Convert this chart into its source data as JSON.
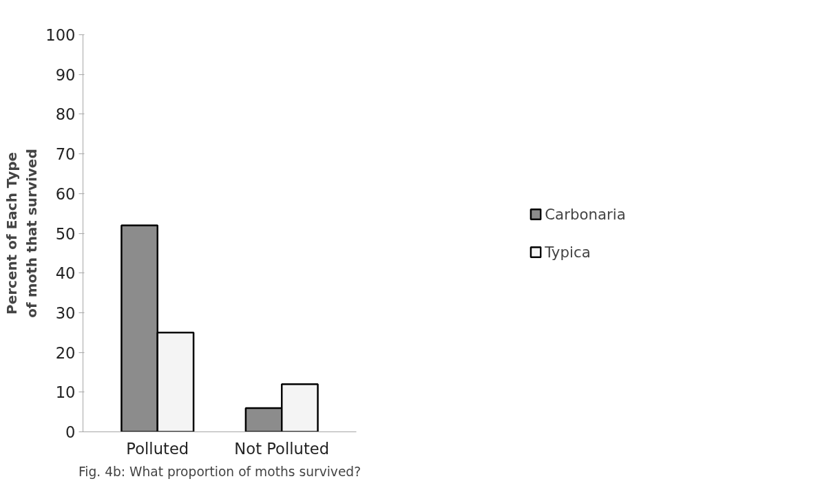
{
  "chart_data": {
    "type": "bar",
    "categories": [
      "Polluted",
      "Not Polluted"
    ],
    "ylabel": "Percent of Each Type\nof moth that survived",
    "series": [
      {
        "name": "Carbonaria",
        "color": "#8c8c8c",
        "values": [
          52,
          6
        ]
      },
      {
        "name": "Typica",
        "color": "#f4f4f4",
        "values": [
          25,
          12
        ]
      }
    ],
    "ylim": [
      0,
      100
    ],
    "yticks": [
      0,
      10,
      20,
      30,
      40,
      50,
      60,
      70,
      80,
      90,
      100
    ],
    "grid": false,
    "legend": "right",
    "annotations": [
      "Fig. 4b: What proportion of moths survived?"
    ]
  }
}
